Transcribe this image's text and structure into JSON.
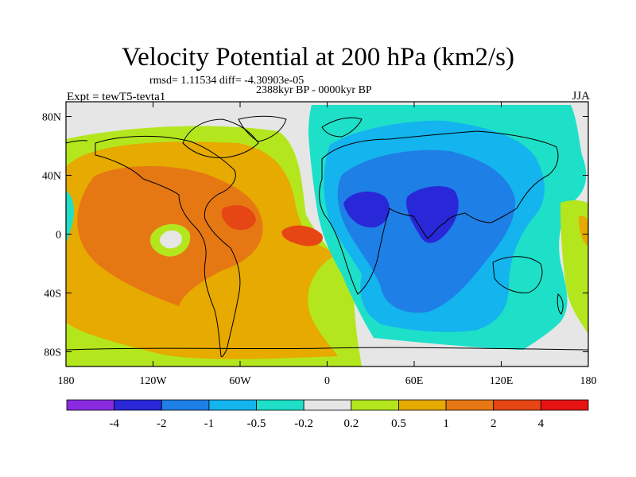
{
  "chart_data": {
    "type": "heatmap",
    "title": "Velocity Potential at 200 hPa (km2/s)",
    "stats_text": "rmsd= 1.11534 diff= -4.30903e-05",
    "period_text": "2388kyr BP - 0000kyr BP",
    "left_label": "Expt = tewT5-tevta1",
    "right_label": "JJA",
    "x_ticks": [
      "180",
      "120W",
      "60W",
      "0",
      "60E",
      "120E",
      "180"
    ],
    "x_values": [
      -180,
      -120,
      -60,
      0,
      60,
      120,
      180
    ],
    "y_ticks": [
      "80N",
      "40N",
      "0",
      "40S",
      "80S"
    ],
    "y_values": [
      80,
      40,
      0,
      -40,
      -80
    ],
    "xlim": [
      -180,
      180
    ],
    "ylim": [
      -90,
      90
    ],
    "levels": [
      -4,
      -2,
      -1,
      -0.5,
      -0.2,
      0.2,
      0.5,
      1,
      2,
      4
    ],
    "colorbar_labels": [
      "-4",
      "-2",
      "-1",
      "-0.5",
      "-0.2",
      "0.2",
      "0.5",
      "1",
      "2",
      "4"
    ],
    "colors": [
      "#8a2be2",
      "#2828d8",
      "#1e7fe6",
      "#14b4ee",
      "#1ee0c8",
      "#e6e6e6",
      "#b4e61e",
      "#e6aa00",
      "#e67814",
      "#e64614",
      "#e61414"
    ],
    "features": [
      {
        "name": "positive center",
        "lon": -60,
        "lat": 10,
        "value": 2.5
      },
      {
        "name": "positive center",
        "lon": -15,
        "lat": 0,
        "value": 2.5
      },
      {
        "name": "weak minimum",
        "lon": -108,
        "lat": 0,
        "value": 0.3
      },
      {
        "name": "negative center",
        "lon": 25,
        "lat": 20,
        "value": -2.5
      },
      {
        "name": "negative center",
        "lon": 75,
        "lat": 25,
        "value": -2.5
      }
    ]
  }
}
